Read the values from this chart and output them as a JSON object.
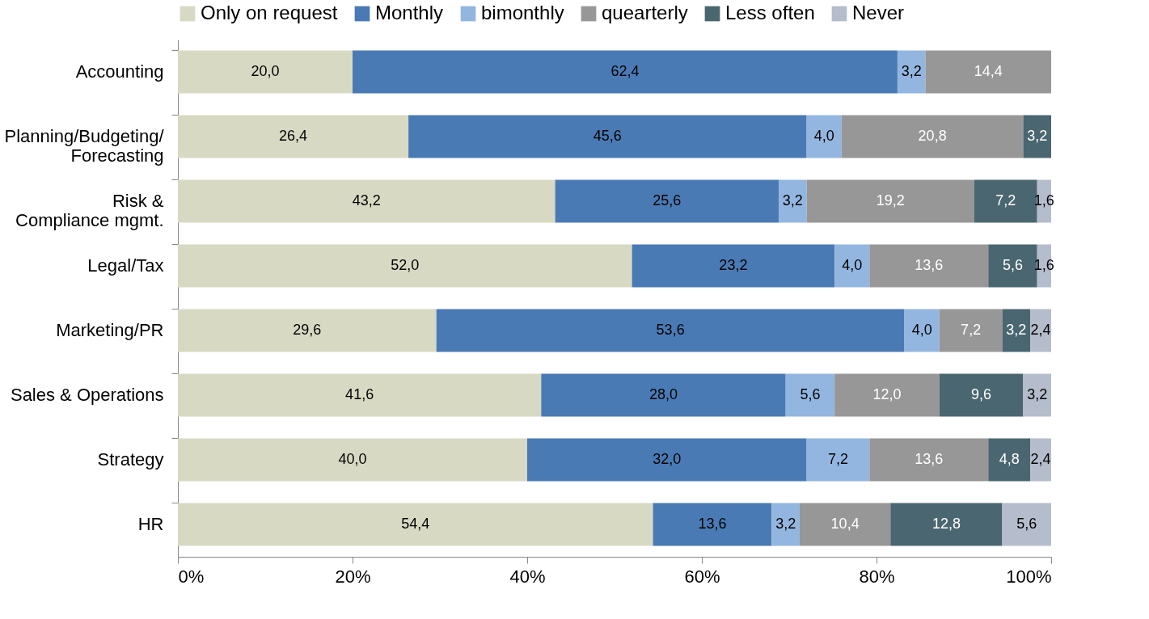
{
  "chart_data": {
    "type": "bar",
    "orientation": "horizontal",
    "stacked": true,
    "categories": [
      "Accounting",
      "Planning/Budgeting/\nForecasting",
      "Risk &\nCompliance mgmt.",
      "Legal/Tax",
      "Marketing/PR",
      "Sales & Operations",
      "Strategy",
      "HR"
    ],
    "series": [
      {
        "name": "Only on request",
        "color": "#d8d9c3",
        "values": [
          20.0,
          26.4,
          43.2,
          52.0,
          29.6,
          41.6,
          40.0,
          54.4
        ],
        "value_labels": [
          "20,0",
          "26,4",
          "43,2",
          "52,0",
          "29,6",
          "41,6",
          "40,0",
          "54,4"
        ]
      },
      {
        "name": "Monthly",
        "color": "#4a7ab4",
        "values": [
          62.4,
          45.6,
          25.6,
          23.2,
          53.6,
          28.0,
          32.0,
          13.6
        ],
        "value_labels": [
          "62,4",
          "45,6",
          "25,6",
          "23,2",
          "53,6",
          "28,0",
          "32,0",
          "13,6"
        ]
      },
      {
        "name": "bimonthly",
        "color": "#93b6e0",
        "values": [
          3.2,
          4.0,
          3.2,
          4.0,
          4.0,
          5.6,
          7.2,
          3.2
        ],
        "value_labels": [
          "3,2",
          "4,0",
          "3,2",
          "4,0",
          "4,0",
          "5,6",
          "7,2",
          "3,2"
        ]
      },
      {
        "name": "quearterly",
        "color": "#979797",
        "values": [
          14.4,
          20.8,
          19.2,
          13.6,
          7.2,
          12.0,
          13.6,
          10.4
        ],
        "value_labels": [
          "14,4",
          "20,8",
          "19,2",
          "13,6",
          "7,2",
          "12,0",
          "13,6",
          "10,4"
        ]
      },
      {
        "name": "Less often",
        "color": "#4a6670",
        "values": [
          null,
          3.2,
          7.2,
          5.6,
          3.2,
          9.6,
          4.8,
          12.8
        ],
        "value_labels": [
          null,
          "3,2",
          "7,2",
          "5,6",
          "3,2",
          "9,6",
          "4,8",
          "12,8"
        ]
      },
      {
        "name": "Never",
        "color": "#b5bccb",
        "values": [
          null,
          null,
          1.6,
          1.6,
          2.4,
          3.2,
          2.4,
          5.6
        ],
        "value_labels": [
          null,
          null,
          "1,6",
          "1,6",
          "2,4",
          "3,2",
          "2,4",
          "5,6"
        ]
      }
    ],
    "xlim": [
      0,
      100
    ],
    "xticks": [
      {
        "value": 0,
        "label": "0%"
      },
      {
        "value": 20,
        "label": "20%"
      },
      {
        "value": 40,
        "label": "40%"
      },
      {
        "value": 60,
        "label": "60%"
      },
      {
        "value": 80,
        "label": "80%"
      },
      {
        "value": 100,
        "label": "100%"
      }
    ],
    "legend": "top",
    "grid": false
  }
}
